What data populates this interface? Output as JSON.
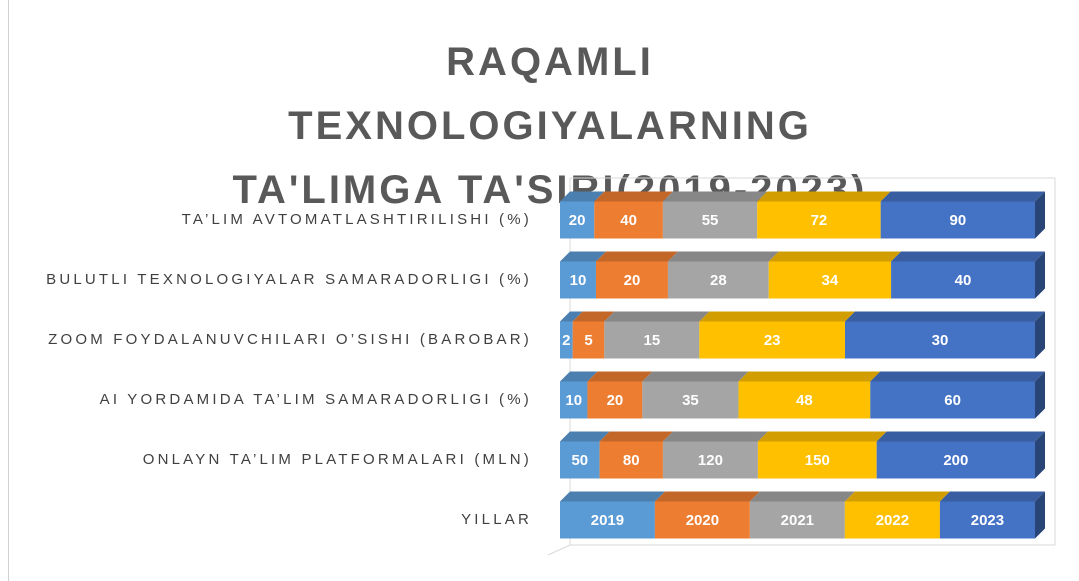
{
  "chart_data": {
    "type": "bar",
    "orientation": "horizontal",
    "stacked": "percent",
    "title": "RAQAMLI TEXNOLOGIYALARNING TA'LIMGA TA'SIRI(2019-2023)",
    "categories": [
      "YILLAR",
      "ONLAYN TA’LIM PLATFORMALARI (MLN)",
      "AI YORDAMIDA TA’LIM SAMARADORLIGI (%)",
      "ZOOM FOYDALANUVCHILARI O’SISHI (BAROBAR)",
      "BULUTLI TEXNOLOGIYALAR SAMARADORLIGI (%)",
      "TA’LIM AVTOMATLASHTIRILISHI (%)"
    ],
    "series": [
      {
        "color": "#5b9bd5",
        "values": [
          2019,
          50,
          10,
          2,
          10,
          20
        ]
      },
      {
        "color": "#ed7d31",
        "values": [
          2020,
          80,
          20,
          5,
          20,
          40
        ]
      },
      {
        "color": "#a5a5a5",
        "values": [
          2021,
          120,
          35,
          15,
          28,
          55
        ]
      },
      {
        "color": "#ffc000",
        "values": [
          2022,
          150,
          48,
          23,
          34,
          72
        ]
      },
      {
        "color": "#4472c4",
        "values": [
          2023,
          200,
          60,
          30,
          40,
          90
        ]
      }
    ]
  }
}
